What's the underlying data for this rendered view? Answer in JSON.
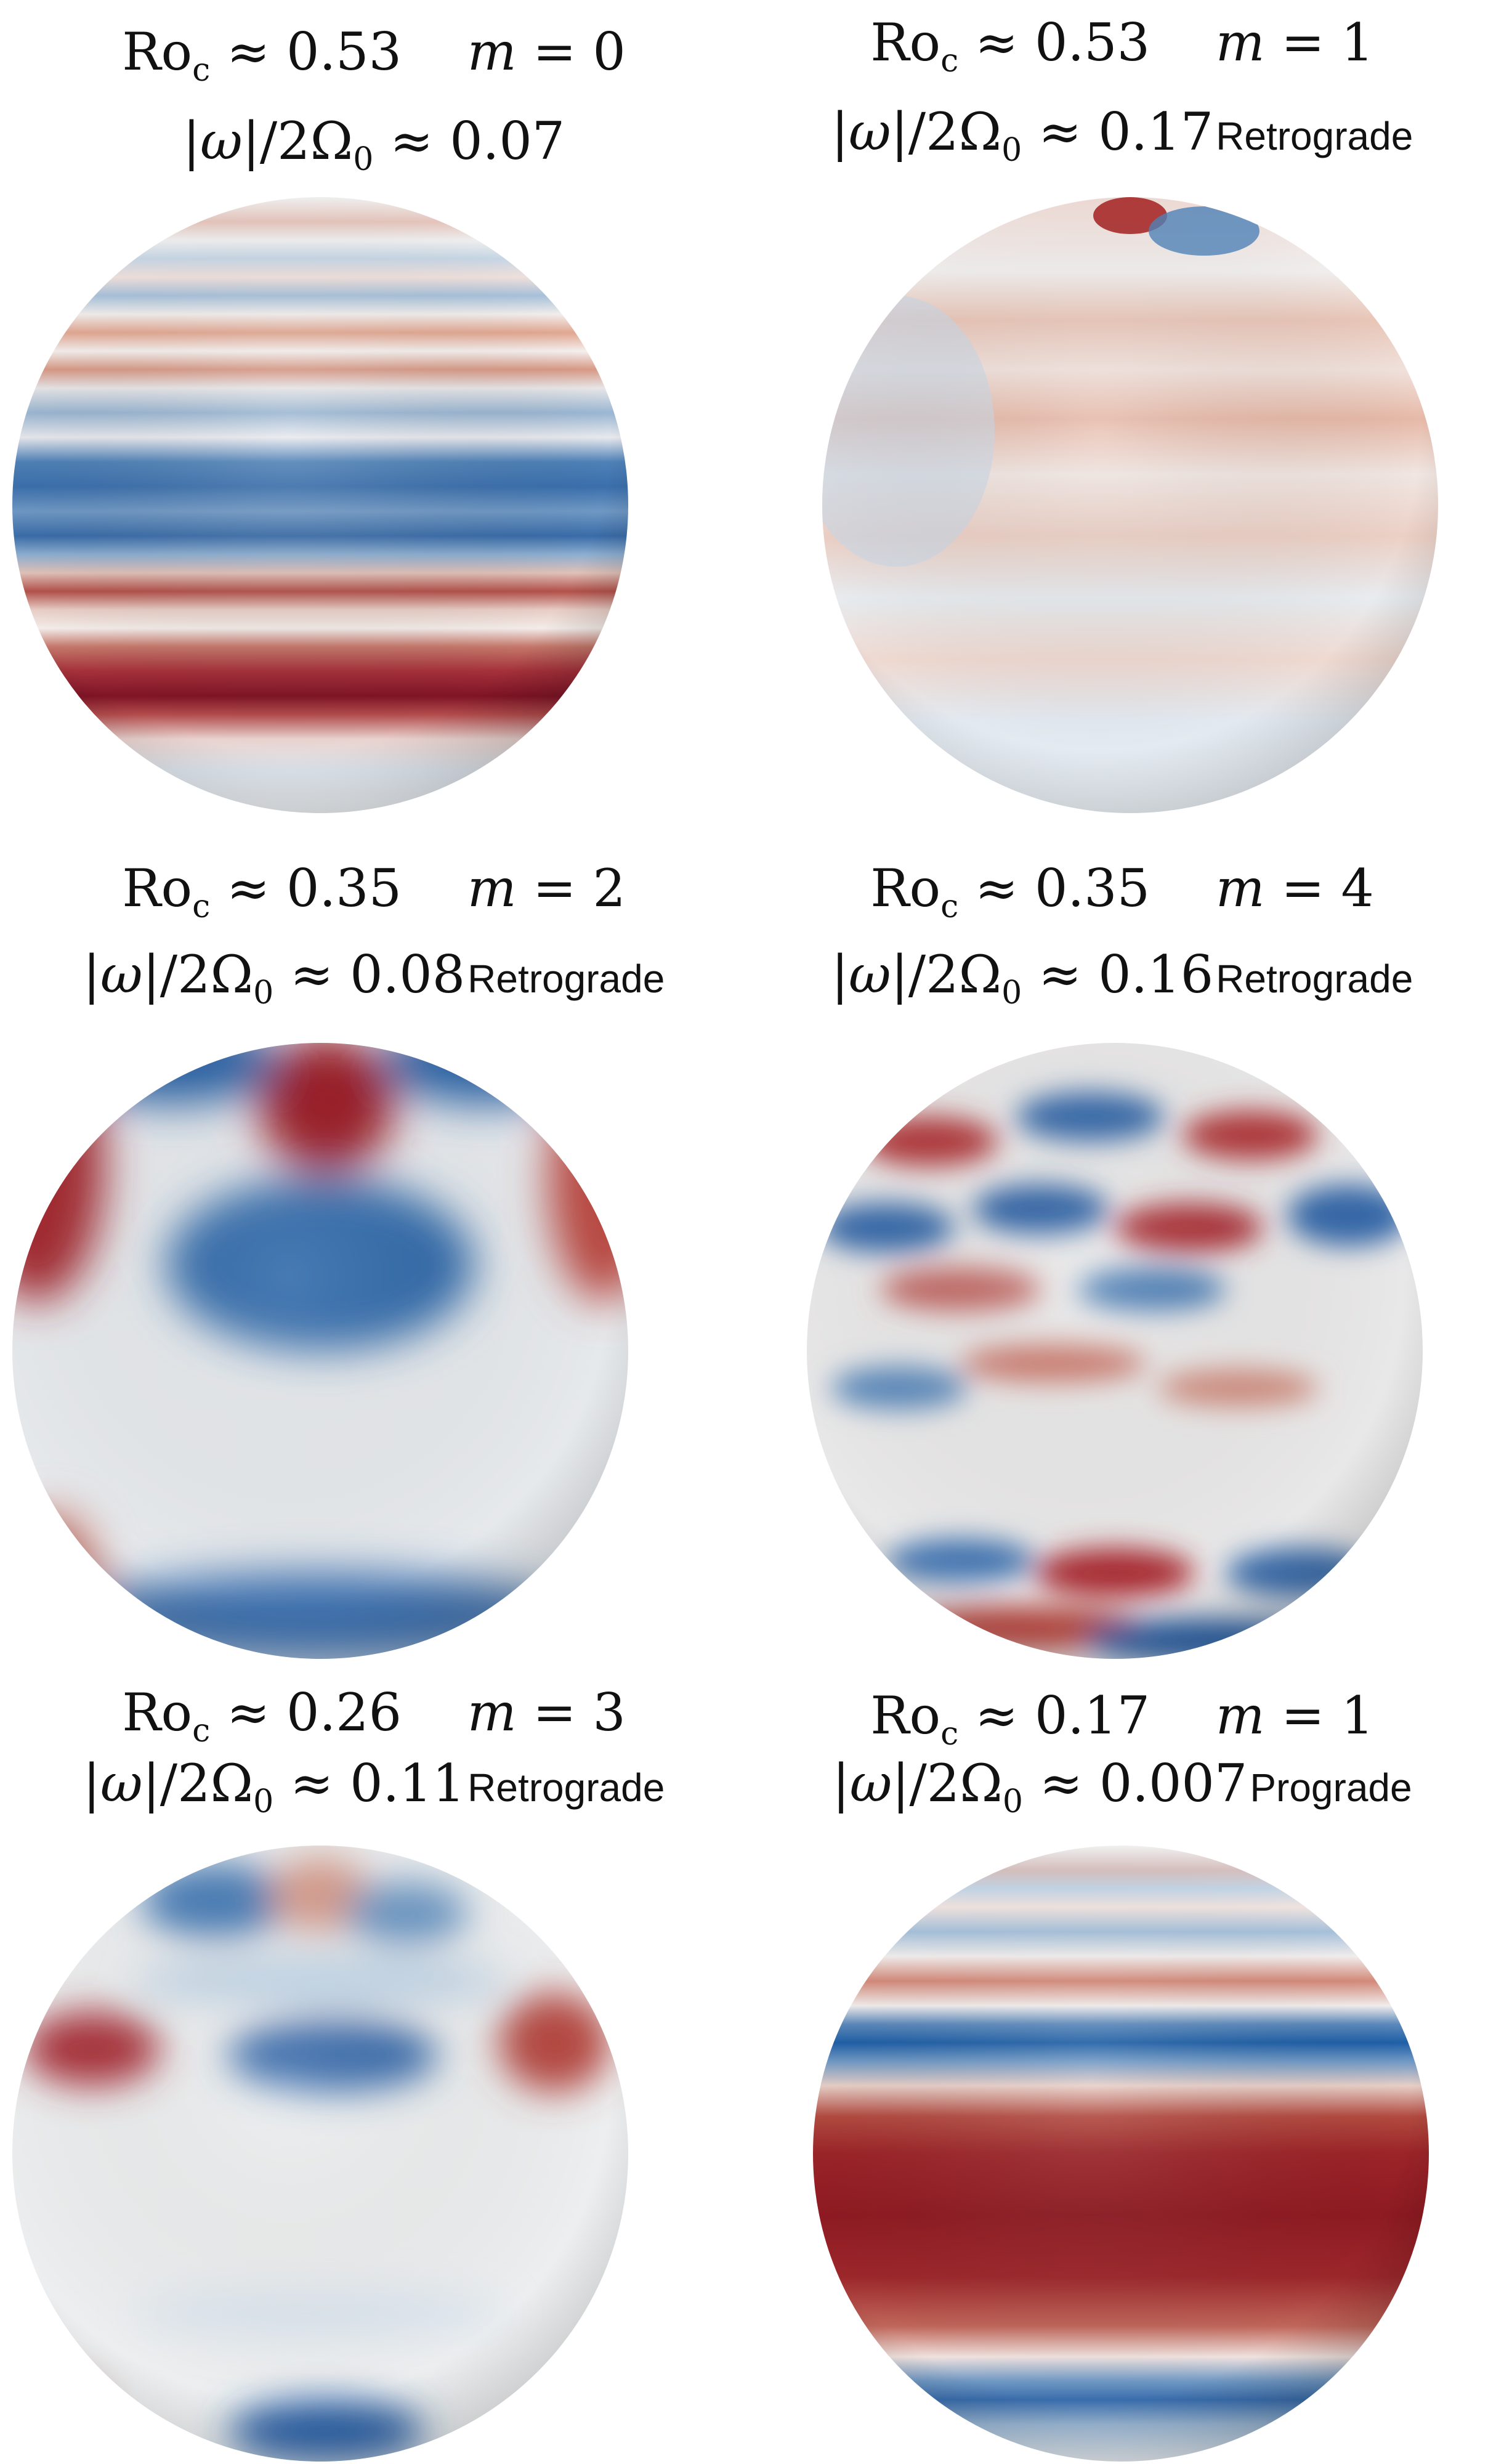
{
  "colors": {
    "red": "#8e1322",
    "blue": "#1f5fa6",
    "white": "#f4f4f4"
  },
  "panels": [
    {
      "ro_label": "Ro",
      "ro_sub": "c",
      "ro": "≈ 0.53",
      "m_sym": "m",
      "m_val": "= 0",
      "omega_left": "|",
      "omega_sym": "ω",
      "omega_right": "|/2Ω",
      "omega_sub": "0",
      "omega_val": "≈ 0.07",
      "direction": ""
    },
    {
      "ro_label": "Ro",
      "ro_sub": "c",
      "ro": "≈ 0.53",
      "m_sym": "m",
      "m_val": "= 1",
      "omega_left": "|",
      "omega_sym": "ω",
      "omega_right": "|/2Ω",
      "omega_sub": "0",
      "omega_val": "≈ 0.17",
      "direction": "Retrograde"
    },
    {
      "ro_label": "Ro",
      "ro_sub": "c",
      "ro": "≈ 0.35",
      "m_sym": "m",
      "m_val": "= 2",
      "omega_left": "|",
      "omega_sym": "ω",
      "omega_right": "|/2Ω",
      "omega_sub": "0",
      "omega_val": "≈ 0.08",
      "direction": "Retrograde"
    },
    {
      "ro_label": "Ro",
      "ro_sub": "c",
      "ro": "≈ 0.35",
      "m_sym": "m",
      "m_val": "= 4",
      "omega_left": "|",
      "omega_sym": "ω",
      "omega_right": "|/2Ω",
      "omega_sub": "0",
      "omega_val": "≈ 0.16",
      "direction": "Retrograde"
    },
    {
      "ro_label": "Ro",
      "ro_sub": "c",
      "ro": "≈ 0.26",
      "m_sym": "m",
      "m_val": "= 3",
      "omega_left": "|",
      "omega_sym": "ω",
      "omega_right": "|/2Ω",
      "omega_sub": "0",
      "omega_val": "≈ 0.11",
      "direction": "Retrograde"
    },
    {
      "ro_label": "Ro",
      "ro_sub": "c",
      "ro": "≈ 0.17",
      "m_sym": "m",
      "m_val": "= 1",
      "omega_left": "|",
      "omega_sym": "ω",
      "omega_right": "|/2Ω",
      "omega_sub": "0",
      "omega_val": "≈ 0.007",
      "direction": "Prograde"
    }
  ]
}
